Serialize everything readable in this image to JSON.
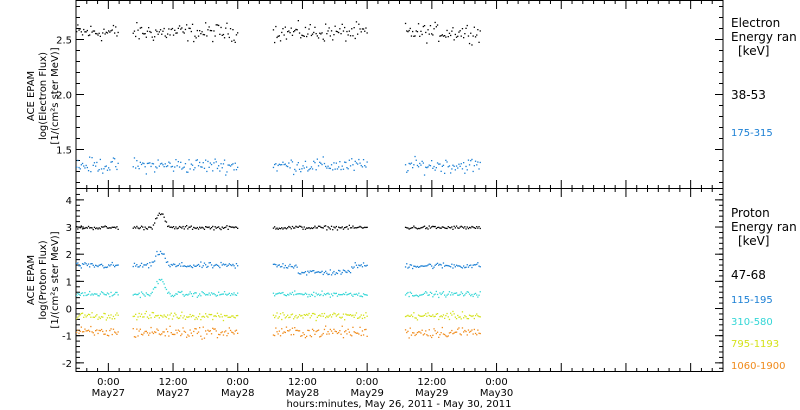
{
  "chart_data": [
    {
      "type": "scatter",
      "panel": "electron",
      "ylabel": [
        "ACE EPAM",
        "log(Electron Flux)",
        "[1/(cm²s ster MeV)]"
      ],
      "ylim": [
        1.15,
        2.85
      ],
      "yticks": [
        1.5,
        2.0,
        2.5
      ],
      "ytick_labels": [
        "1.5",
        "2.0",
        "2.5"
      ],
      "legend_title": [
        "Electron",
        "Energy ran",
        "[keV]"
      ],
      "series": [
        {
          "name": "38-53",
          "color": "#000000",
          "mean": 2.57,
          "spread": 0.06
        },
        {
          "name": "175-315",
          "color": "#1a7fd4",
          "mean": 1.36,
          "spread": 0.05
        }
      ]
    },
    {
      "type": "scatter",
      "panel": "proton",
      "ylabel": [
        "ACE EPAM",
        "log(Proton Flux)",
        "[1/(cm²s ster MeV)]"
      ],
      "ylim": [
        -2.3,
        4.4
      ],
      "yticks": [
        -2,
        -1,
        0,
        1,
        2,
        3,
        4
      ],
      "ytick_labels": [
        "-2",
        "-1",
        "0",
        "1",
        "2",
        "3",
        "4"
      ],
      "legend_title": [
        "Proton",
        "Energy ran",
        "[keV]"
      ],
      "series": [
        {
          "name": "47-68",
          "color": "#000000",
          "mean": 3.0,
          "spread": 0.05
        },
        {
          "name": "115-195",
          "color": "#1a7fd4",
          "mean": 1.6,
          "spread": 0.08
        },
        {
          "name": "310-580",
          "color": "#33d6d6",
          "mean": 0.55,
          "spread": 0.07
        },
        {
          "name": "795-1193",
          "color": "#d4e21a",
          "mean": -0.25,
          "spread": 0.1
        },
        {
          "name": "1060-1900",
          "color": "#f08a1a",
          "mean": -0.85,
          "spread": 0.15
        }
      ]
    }
  ],
  "xaxis": {
    "range_hours": [
      -6,
      114
    ],
    "ticks": [
      {
        "hour": 0,
        "time": "0:00",
        "date": "May27"
      },
      {
        "hour": 12,
        "time": "12:00",
        "date": "May27"
      },
      {
        "hour": 24,
        "time": "0:00",
        "date": "May28"
      },
      {
        "hour": 36,
        "time": "12:00",
        "date": "May28"
      },
      {
        "hour": 48,
        "time": "0:00",
        "date": "May29"
      },
      {
        "hour": 60,
        "time": "12:00",
        "date": "May29"
      },
      {
        "hour": 72,
        "time": "0:00",
        "date": "May30"
      }
    ],
    "label": "hours:minutes, May 26, 2011 - May 30, 2011",
    "data_segments_hours": [
      [
        -6,
        1.7
      ],
      [
        4.5,
        24
      ],
      [
        30.5,
        48
      ],
      [
        55,
        69
      ]
    ]
  }
}
